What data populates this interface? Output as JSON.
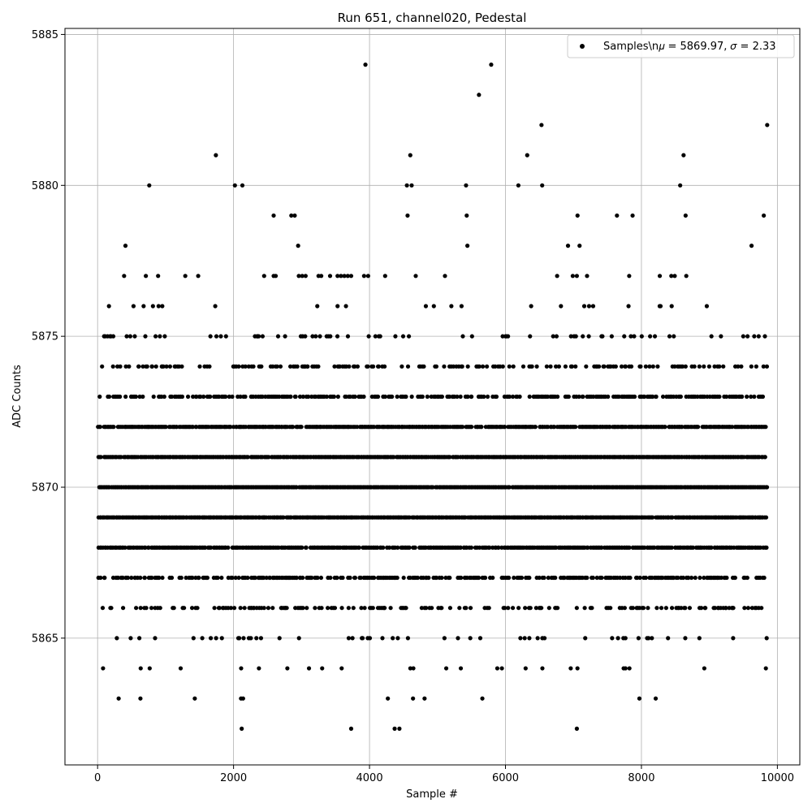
{
  "chart_data": {
    "type": "scatter",
    "title": "Run 651, channel020, Pedestal",
    "xlabel": "Sample #",
    "ylabel": "ADC Counts",
    "xlim": [
      -480,
      10330
    ],
    "ylim": [
      5860.8,
      5885.2
    ],
    "xticks": [
      0,
      2000,
      4000,
      6000,
      8000,
      10000
    ],
    "yticks": [
      5865,
      5870,
      5875,
      5880,
      5885
    ],
    "x_start": 0,
    "x_end": 9850,
    "levels": [
      5862,
      5863,
      5864,
      5865,
      5866,
      5867,
      5868,
      5869,
      5870,
      5871,
      5872,
      5873,
      5874,
      5875,
      5876,
      5877,
      5878,
      5879,
      5880,
      5881,
      5882,
      5883,
      5884
    ],
    "mean": 5869.97,
    "sigma": 2.33,
    "grid": true,
    "legend_position": "top-right",
    "series": [
      {
        "name": "Samples\\n𝜇 = 5869.97, 𝜎 = 2.33",
        "marker": "circle",
        "color": "#000000",
        "points": [
          [
            2120,
            5862
          ],
          [
            3730,
            5862
          ],
          [
            4370,
            5862
          ],
          [
            4440,
            5862
          ],
          [
            7050,
            5862
          ],
          [
            310,
            5863
          ],
          [
            630,
            5863
          ],
          [
            1430,
            5863
          ],
          [
            2110,
            5863
          ],
          [
            2140,
            5863
          ],
          [
            4270,
            5863
          ],
          [
            4640,
            5863
          ],
          [
            4810,
            5863
          ],
          [
            5660,
            5863
          ],
          [
            7970,
            5863
          ],
          [
            8210,
            5863
          ],
          [
            3940,
            5884
          ],
          [
            5790,
            5884
          ],
          [
            5610,
            5883
          ],
          [
            6530,
            5882
          ],
          [
            9850,
            5882
          ],
          [
            1740,
            5881
          ],
          [
            4600,
            5881
          ],
          [
            6320,
            5881
          ],
          [
            8620,
            5881
          ],
          [
            760,
            5880
          ],
          [
            2020,
            5880
          ],
          [
            2130,
            5880
          ],
          [
            4550,
            5880
          ],
          [
            4620,
            5880
          ],
          [
            5420,
            5880
          ],
          [
            6190,
            5880
          ],
          [
            6540,
            5880
          ],
          [
            8570,
            5880
          ],
          [
            2590,
            5879
          ],
          [
            2850,
            5879
          ],
          [
            2900,
            5879
          ],
          [
            4560,
            5879
          ],
          [
            5430,
            5879
          ],
          [
            7060,
            5879
          ],
          [
            7640,
            5879
          ],
          [
            7870,
            5879
          ],
          [
            8650,
            5879
          ],
          [
            9800,
            5879
          ],
          [
            410,
            5878
          ],
          [
            2950,
            5878
          ],
          [
            5440,
            5878
          ],
          [
            6920,
            5878
          ],
          [
            7090,
            5878
          ],
          [
            9620,
            5878
          ],
          [
            390,
            5877
          ],
          [
            710,
            5877
          ],
          [
            890,
            5877
          ],
          [
            1290,
            5877
          ],
          [
            1480,
            5877
          ],
          [
            2450,
            5877
          ],
          [
            2590,
            5877
          ],
          [
            2620,
            5877
          ],
          [
            2960,
            5877
          ],
          [
            3010,
            5877
          ],
          [
            3060,
            5877
          ],
          [
            3250,
            5877
          ],
          [
            3290,
            5877
          ],
          [
            3420,
            5877
          ],
          [
            3530,
            5877
          ],
          [
            3580,
            5877
          ],
          [
            3630,
            5877
          ],
          [
            3680,
            5877
          ],
          [
            3730,
            5877
          ],
          [
            3920,
            5877
          ],
          [
            3980,
            5877
          ],
          [
            4230,
            5877
          ],
          [
            4680,
            5877
          ],
          [
            5110,
            5877
          ],
          [
            6760,
            5877
          ],
          [
            6990,
            5877
          ],
          [
            7050,
            5877
          ],
          [
            7200,
            5877
          ],
          [
            7820,
            5877
          ],
          [
            8270,
            5877
          ],
          [
            8440,
            5877
          ],
          [
            8490,
            5877
          ],
          [
            8660,
            5877
          ]
        ]
      }
    ]
  }
}
